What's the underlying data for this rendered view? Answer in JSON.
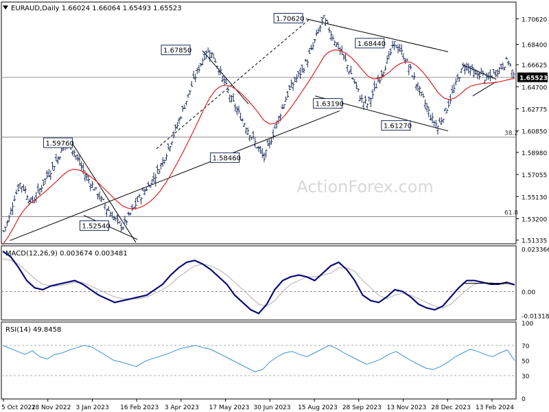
{
  "chart_data": [
    {
      "type": "candlestick",
      "symbol": "EURAUD",
      "timeframe": "Daily",
      "ohlc": {
        "open": "1.66024",
        "high": "1.66064",
        "low": "1.65493",
        "close": "1.65523"
      },
      "header": "EURAUD,Daily  1.66024 1.66064 1.65493 1.65523",
      "watermark": "ActionForex.com",
      "ylim": [
        1.5108,
        1.7202
      ],
      "y_ticks": [
        "1.70620",
        "1.68400",
        "1.66625",
        "1.64700",
        "1.62775",
        "1.60850",
        "1.58980",
        "1.57055",
        "1.55130",
        "1.53200",
        "1.51335"
      ],
      "current_price": "1.65523",
      "price_labels": [
        {
          "text": "1.70620",
          "value": 1.7062,
          "date_index": 0.586
        },
        {
          "text": "1.68440",
          "value": 1.6844,
          "date_index": 0.745
        },
        {
          "text": "1.67850",
          "value": 1.6785,
          "date_index": 0.366
        },
        {
          "text": "1.63190",
          "value": 1.6319,
          "date_index": 0.663
        },
        {
          "text": "1.61270",
          "value": 1.6127,
          "date_index": 0.796
        },
        {
          "text": "1.59760",
          "value": 1.5976,
          "date_index": 0.136
        },
        {
          "text": "1.58460",
          "value": 1.5846,
          "date_index": 0.462
        },
        {
          "text": "1.52540",
          "value": 1.5254,
          "date_index": 0.207
        }
      ],
      "fib_levels": [
        {
          "label": "38.2",
          "value": 1.6031
        },
        {
          "label": "61.8",
          "value": 1.5338
        }
      ],
      "close_series": [
        1.5212,
        1.5325,
        1.5508,
        1.5625,
        1.5568,
        1.5462,
        1.5512,
        1.5605,
        1.5692,
        1.5768,
        1.5852,
        1.5942,
        1.5976,
        1.5905,
        1.5802,
        1.5705,
        1.5638,
        1.5562,
        1.5488,
        1.5415,
        1.5352,
        1.5286,
        1.5254,
        1.5332,
        1.5415,
        1.5502,
        1.5566,
        1.5628,
        1.5699,
        1.5788,
        1.5895,
        1.6012,
        1.6134,
        1.6265,
        1.6392,
        1.6521,
        1.6635,
        1.6742,
        1.6785,
        1.6702,
        1.6588,
        1.6471,
        1.6358,
        1.6265,
        1.6182,
        1.6098,
        1.6012,
        1.5925,
        1.5846,
        1.5972,
        1.6112,
        1.6242,
        1.6368,
        1.6472,
        1.6545,
        1.6612,
        1.6705,
        1.6822,
        1.6955,
        1.7062,
        1.6972,
        1.6875,
        1.6788,
        1.6692,
        1.6582,
        1.6465,
        1.6352,
        1.6319,
        1.6402,
        1.6515,
        1.6622,
        1.6725,
        1.6844,
        1.6792,
        1.6712,
        1.6615,
        1.6502,
        1.6395,
        1.6288,
        1.6182,
        1.6127,
        1.6215,
        1.6325,
        1.6448,
        1.6575,
        1.6662,
        1.6632,
        1.6565,
        1.6592,
        1.6528,
        1.6568,
        1.6612,
        1.6655,
        1.6702,
        1.6552
      ],
      "ma_series": [
        1.5095,
        1.5162,
        1.5245,
        1.5335,
        1.5402,
        1.5452,
        1.5488,
        1.5525,
        1.5565,
        1.5608,
        1.5652,
        1.5698,
        1.5735,
        1.5752,
        1.5745,
        1.5722,
        1.5692,
        1.5655,
        1.5612,
        1.5565,
        1.5518,
        1.5472,
        1.5432,
        1.5412,
        1.5405,
        1.5415,
        1.5435,
        1.5468,
        1.5512,
        1.5568,
        1.5638,
        1.5715,
        1.5802,
        1.5892,
        1.5985,
        1.6082,
        1.6182,
        1.6282,
        1.6372,
        1.6438,
        1.6475,
        1.6485,
        1.6472,
        1.6442,
        1.6402,
        1.6352,
        1.6298,
        1.6238,
        1.6175,
        1.6145,
        1.6152,
        1.6182,
        1.6232,
        1.6295,
        1.6362,
        1.6432,
        1.6502,
        1.6578,
        1.6655,
        1.6735,
        1.6778,
        1.6792,
        1.6785,
        1.6762,
        1.6725,
        1.6675,
        1.6618,
        1.6565,
        1.6538,
        1.6542,
        1.6565,
        1.6598,
        1.6642,
        1.6672,
        1.6688,
        1.6682,
        1.6652,
        1.6605,
        1.6548,
        1.6482,
        1.6415,
        1.6372,
        1.6358,
        1.6372,
        1.6405,
        1.6448,
        1.6478,
        1.6488,
        1.6498,
        1.6502,
        1.6505,
        1.6512,
        1.6522,
        1.6535,
        1.6542
      ]
    },
    {
      "type": "line",
      "title": "MACD(12,26,9) 0.003674 0.003481",
      "y_ticks": [
        "0.023366",
        "0.00",
        "-0.013186"
      ],
      "ylim": [
        -0.0152,
        0.0246
      ],
      "series": [
        {
          "name": "MACD",
          "values": [
            0.022,
            0.019,
            0.013,
            0.006,
            0.002,
            0.001,
            0.003,
            0.004,
            0.005,
            0.006,
            0.004,
            0.001,
            -0.002,
            -0.004,
            -0.006,
            -0.005,
            -0.004,
            -0.003,
            -0.002,
            0.001,
            0.004,
            0.009,
            0.013,
            0.016,
            0.017,
            0.015,
            0.012,
            0.008,
            0.004,
            -0.002,
            -0.006,
            -0.01,
            -0.012,
            -0.007,
            0.001,
            0.006,
            0.008,
            0.009,
            0.008,
            0.006,
            0.01,
            0.014,
            0.016,
            0.012,
            0.006,
            -0.002,
            -0.005,
            -0.006,
            -0.003,
            0.001,
            0.0,
            -0.003,
            -0.007,
            -0.009,
            -0.01,
            -0.008,
            -0.003,
            0.002,
            0.006,
            0.006,
            0.005,
            0.004,
            0.004,
            0.005,
            0.003674
          ]
        },
        {
          "name": "Signal",
          "values": [
            0.018,
            0.017,
            0.015,
            0.011,
            0.007,
            0.004,
            0.003,
            0.003,
            0.004,
            0.005,
            0.005,
            0.003,
            0.001,
            -0.001,
            -0.003,
            -0.004,
            -0.004,
            -0.004,
            -0.003,
            -0.001,
            0.001,
            0.004,
            0.008,
            0.011,
            0.014,
            0.015,
            0.014,
            0.012,
            0.009,
            0.005,
            0.001,
            -0.003,
            -0.007,
            -0.008,
            -0.005,
            0.0,
            0.004,
            0.006,
            0.008,
            0.008,
            0.009,
            0.01,
            0.013,
            0.013,
            0.011,
            0.006,
            0.002,
            -0.002,
            -0.004,
            -0.002,
            -0.001,
            -0.002,
            -0.004,
            -0.006,
            -0.008,
            -0.009,
            -0.007,
            -0.003,
            0.001,
            0.004,
            0.005,
            0.005,
            0.004,
            0.004,
            0.003481
          ]
        }
      ]
    },
    {
      "type": "line",
      "title": "RSI(14) 49.8458",
      "y_ticks": [
        "100",
        "70",
        "50",
        "30",
        "0"
      ],
      "ylim": [
        0,
        100
      ],
      "levels": [
        70,
        30
      ],
      "series": [
        {
          "name": "RSI",
          "values": [
            70,
            66,
            62,
            58,
            63,
            55,
            52,
            58,
            60,
            64,
            67,
            70,
            68,
            62,
            56,
            50,
            48,
            45,
            42,
            48,
            52,
            55,
            58,
            62,
            66,
            68,
            70,
            67,
            65,
            60,
            55,
            50,
            45,
            40,
            35,
            38,
            48,
            55,
            60,
            62,
            58,
            55,
            60,
            65,
            70,
            66,
            60,
            55,
            50,
            45,
            48,
            52,
            58,
            62,
            56,
            50,
            45,
            40,
            38,
            42,
            48,
            55,
            60,
            65,
            62,
            58,
            55,
            60,
            64,
            49.8458
          ]
        }
      ]
    }
  ],
  "x_ticks": [
    "5 Oct 2022",
    "18 Nov 2022",
    "3 Jan 2023",
    "16 Feb 2023",
    "3 Apr 2023",
    "17 May 2023",
    "30 Jun 2023",
    "15 Aug 2023",
    "28 Sep 2023",
    "13 Nov 2023",
    "28 Dec 2023",
    "13 Feb 2024"
  ],
  "colors": {
    "bull_bar": "#1a2a5a",
    "ma": "#e02020",
    "macd": "#0a0a78",
    "signal": "#b0b0b0",
    "rsi": "#3d8fd6",
    "label_border": "#1a2a5a",
    "grid": "#c8c8c8"
  }
}
